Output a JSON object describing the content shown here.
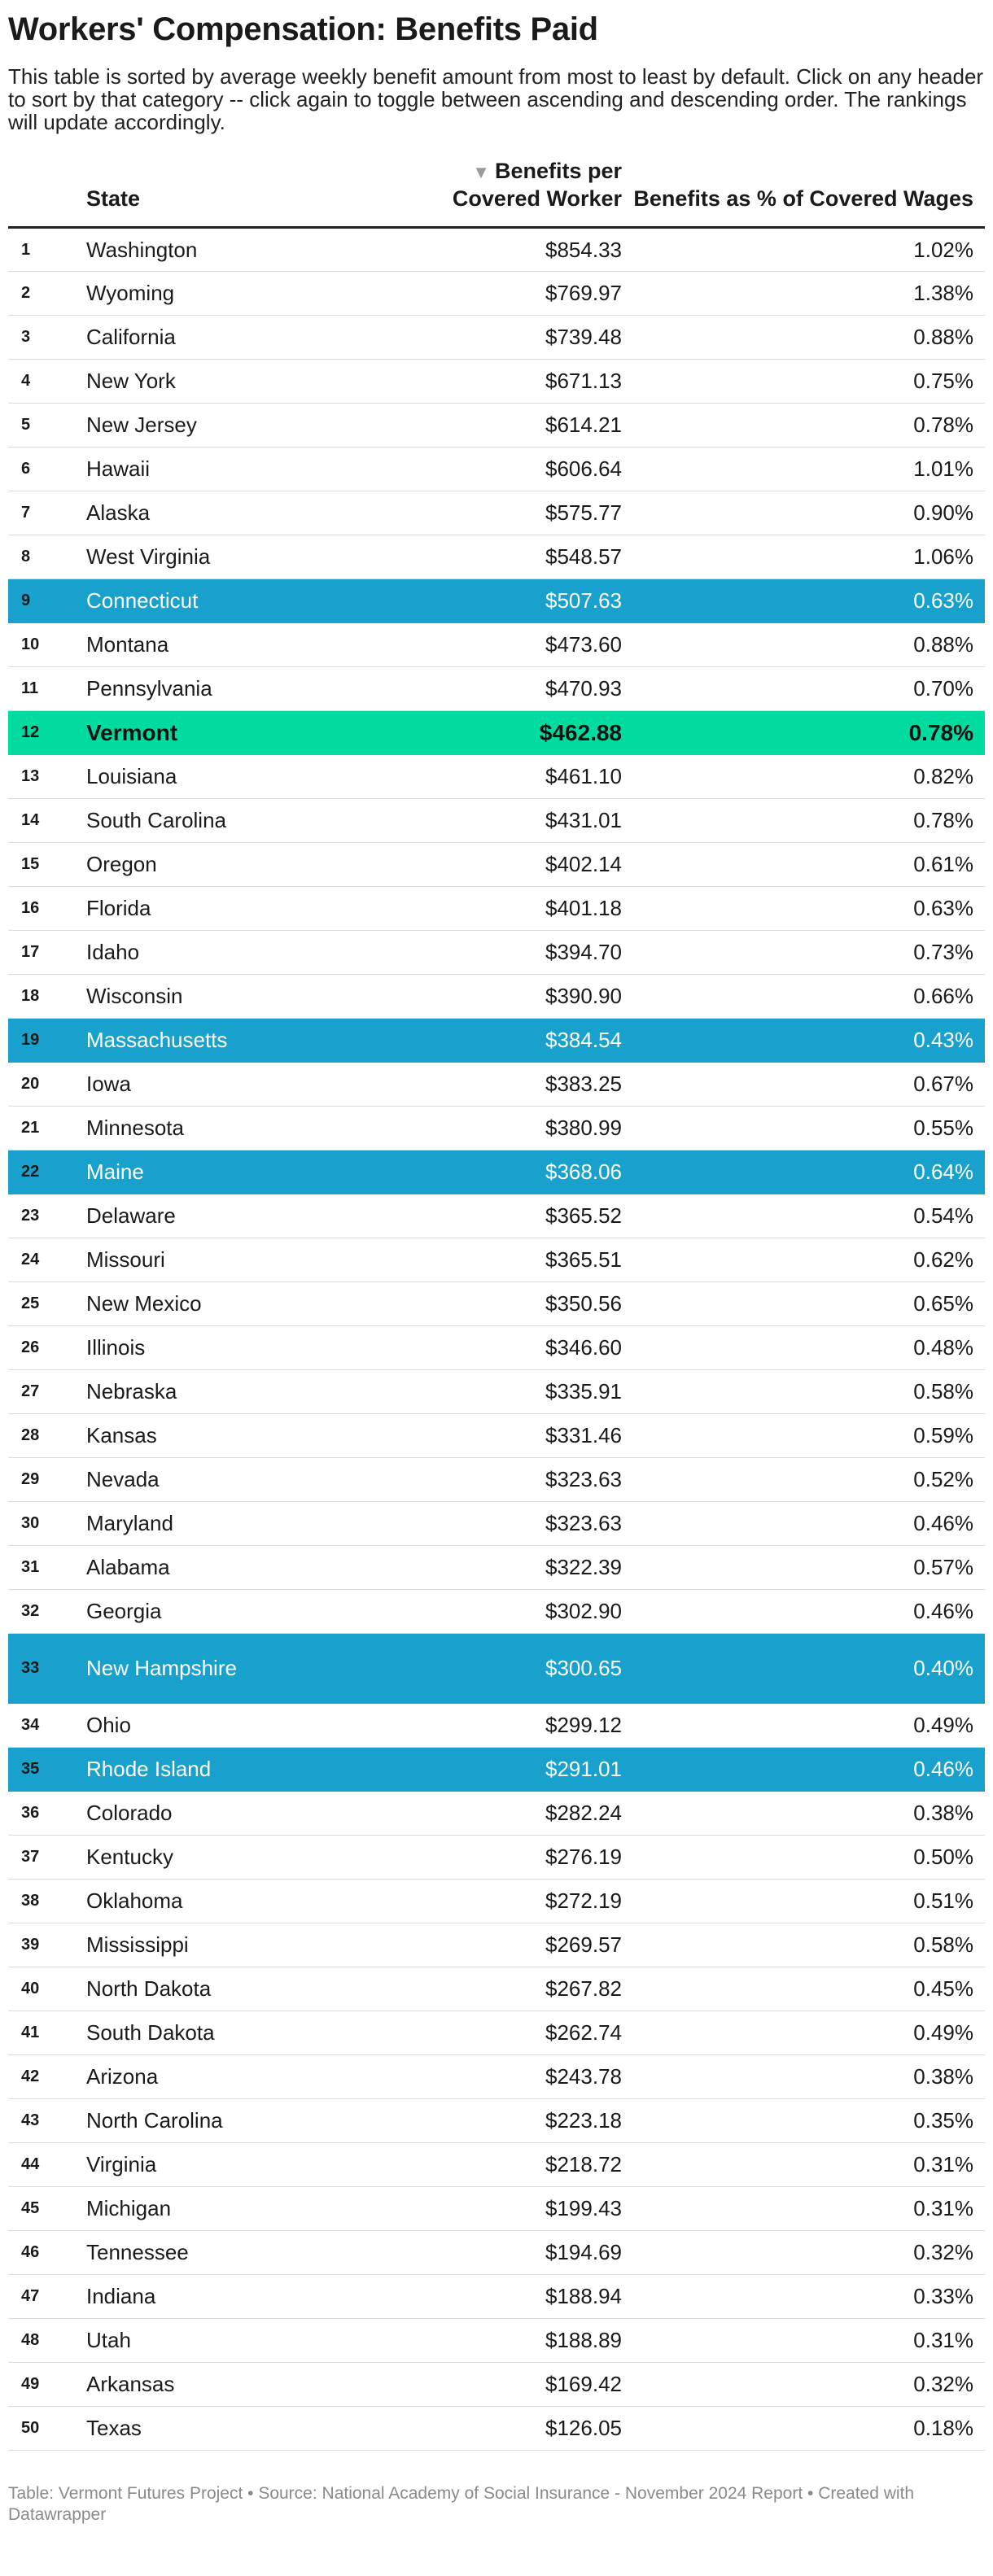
{
  "page": {
    "title": "Workers' Compensation: Benefits Paid",
    "description": "This table is sorted by average weekly benefit amount from most to least by default. Click on any header to sort by that category -- click again to toggle between ascending and descending order. The rankings will update accordingly.",
    "footer": "Table: Vermont Futures Project • Source: National Academy of Social Insurance - November 2024 Report • Created with Datawrapper"
  },
  "colors": {
    "highlight_new_england": "#18a1cd",
    "highlight_vermont": "#00dca0"
  },
  "chart_data": {
    "type": "table",
    "sort": {
      "column": "Benefits per Covered Worker",
      "direction": "descending",
      "indicator": "sort-down-icon"
    },
    "columns": [
      "",
      "State",
      "Benefits per Covered Worker",
      "Benefits as % of Covered Wages"
    ],
    "rows": [
      {
        "rank": "1",
        "state": "Washington",
        "benefits": "$854.33",
        "pct": "1.02%",
        "hl": ""
      },
      {
        "rank": "2",
        "state": "Wyoming",
        "benefits": "$769.97",
        "pct": "1.38%",
        "hl": ""
      },
      {
        "rank": "3",
        "state": "California",
        "benefits": "$739.48",
        "pct": "0.88%",
        "hl": ""
      },
      {
        "rank": "4",
        "state": "New York",
        "benefits": "$671.13",
        "pct": "0.75%",
        "hl": ""
      },
      {
        "rank": "5",
        "state": "New Jersey",
        "benefits": "$614.21",
        "pct": "0.78%",
        "hl": ""
      },
      {
        "rank": "6",
        "state": "Hawaii",
        "benefits": "$606.64",
        "pct": "1.01%",
        "hl": ""
      },
      {
        "rank": "7",
        "state": "Alaska",
        "benefits": "$575.77",
        "pct": "0.90%",
        "hl": ""
      },
      {
        "rank": "8",
        "state": "West Virginia",
        "benefits": "$548.57",
        "pct": "1.06%",
        "hl": ""
      },
      {
        "rank": "9",
        "state": "Connecticut",
        "benefits": "$507.63",
        "pct": "0.63%",
        "hl": "blue"
      },
      {
        "rank": "10",
        "state": "Montana",
        "benefits": "$473.60",
        "pct": "0.88%",
        "hl": ""
      },
      {
        "rank": "11",
        "state": "Pennsylvania",
        "benefits": "$470.93",
        "pct": "0.70%",
        "hl": ""
      },
      {
        "rank": "12",
        "state": "Vermont",
        "benefits": "$462.88",
        "pct": "0.78%",
        "hl": "green"
      },
      {
        "rank": "13",
        "state": "Louisiana",
        "benefits": "$461.10",
        "pct": "0.82%",
        "hl": ""
      },
      {
        "rank": "14",
        "state": "South Carolina",
        "benefits": "$431.01",
        "pct": "0.78%",
        "hl": ""
      },
      {
        "rank": "15",
        "state": "Oregon",
        "benefits": "$402.14",
        "pct": "0.61%",
        "hl": ""
      },
      {
        "rank": "16",
        "state": "Florida",
        "benefits": "$401.18",
        "pct": "0.63%",
        "hl": ""
      },
      {
        "rank": "17",
        "state": "Idaho",
        "benefits": "$394.70",
        "pct": "0.73%",
        "hl": ""
      },
      {
        "rank": "18",
        "state": "Wisconsin",
        "benefits": "$390.90",
        "pct": "0.66%",
        "hl": ""
      },
      {
        "rank": "19",
        "state": "Massachusetts",
        "benefits": "$384.54",
        "pct": "0.43%",
        "hl": "blue"
      },
      {
        "rank": "20",
        "state": "Iowa",
        "benefits": "$383.25",
        "pct": "0.67%",
        "hl": ""
      },
      {
        "rank": "21",
        "state": "Minnesota",
        "benefits": "$380.99",
        "pct": "0.55%",
        "hl": ""
      },
      {
        "rank": "22",
        "state": "Maine",
        "benefits": "$368.06",
        "pct": "0.64%",
        "hl": "blue"
      },
      {
        "rank": "23",
        "state": "Delaware",
        "benefits": "$365.52",
        "pct": "0.54%",
        "hl": ""
      },
      {
        "rank": "24",
        "state": "Missouri",
        "benefits": "$365.51",
        "pct": "0.62%",
        "hl": ""
      },
      {
        "rank": "25",
        "state": "New Mexico",
        "benefits": "$350.56",
        "pct": "0.65%",
        "hl": ""
      },
      {
        "rank": "26",
        "state": "Illinois",
        "benefits": "$346.60",
        "pct": "0.48%",
        "hl": ""
      },
      {
        "rank": "27",
        "state": "Nebraska",
        "benefits": "$335.91",
        "pct": "0.58%",
        "hl": ""
      },
      {
        "rank": "28",
        "state": "Kansas",
        "benefits": "$331.46",
        "pct": "0.59%",
        "hl": ""
      },
      {
        "rank": "29",
        "state": "Nevada",
        "benefits": "$323.63",
        "pct": "0.52%",
        "hl": ""
      },
      {
        "rank": "30",
        "state": "Maryland",
        "benefits": "$323.63",
        "pct": "0.46%",
        "hl": ""
      },
      {
        "rank": "31",
        "state": "Alabama",
        "benefits": "$322.39",
        "pct": "0.57%",
        "hl": ""
      },
      {
        "rank": "32",
        "state": "Georgia",
        "benefits": "$302.90",
        "pct": "0.46%",
        "hl": ""
      },
      {
        "rank": "33",
        "state": "New Hampshire",
        "benefits": "$300.65",
        "pct": "0.40%",
        "hl": "blue"
      },
      {
        "rank": "34",
        "state": "Ohio",
        "benefits": "$299.12",
        "pct": "0.49%",
        "hl": ""
      },
      {
        "rank": "35",
        "state": "Rhode Island",
        "benefits": "$291.01",
        "pct": "0.46%",
        "hl": "blue"
      },
      {
        "rank": "36",
        "state": "Colorado",
        "benefits": "$282.24",
        "pct": "0.38%",
        "hl": ""
      },
      {
        "rank": "37",
        "state": "Kentucky",
        "benefits": "$276.19",
        "pct": "0.50%",
        "hl": ""
      },
      {
        "rank": "38",
        "state": "Oklahoma",
        "benefits": "$272.19",
        "pct": "0.51%",
        "hl": ""
      },
      {
        "rank": "39",
        "state": "Mississippi",
        "benefits": "$269.57",
        "pct": "0.58%",
        "hl": ""
      },
      {
        "rank": "40",
        "state": "North Dakota",
        "benefits": "$267.82",
        "pct": "0.45%",
        "hl": ""
      },
      {
        "rank": "41",
        "state": "South Dakota",
        "benefits": "$262.74",
        "pct": "0.49%",
        "hl": ""
      },
      {
        "rank": "42",
        "state": "Arizona",
        "benefits": "$243.78",
        "pct": "0.38%",
        "hl": ""
      },
      {
        "rank": "43",
        "state": "North Carolina",
        "benefits": "$223.18",
        "pct": "0.35%",
        "hl": ""
      },
      {
        "rank": "44",
        "state": "Virginia",
        "benefits": "$218.72",
        "pct": "0.31%",
        "hl": ""
      },
      {
        "rank": "45",
        "state": "Michigan",
        "benefits": "$199.43",
        "pct": "0.31%",
        "hl": ""
      },
      {
        "rank": "46",
        "state": "Tennessee",
        "benefits": "$194.69",
        "pct": "0.32%",
        "hl": ""
      },
      {
        "rank": "47",
        "state": "Indiana",
        "benefits": "$188.94",
        "pct": "0.33%",
        "hl": ""
      },
      {
        "rank": "48",
        "state": "Utah",
        "benefits": "$188.89",
        "pct": "0.31%",
        "hl": ""
      },
      {
        "rank": "49",
        "state": "Arkansas",
        "benefits": "$169.42",
        "pct": "0.32%",
        "hl": ""
      },
      {
        "rank": "50",
        "state": "Texas",
        "benefits": "$126.05",
        "pct": "0.18%",
        "hl": ""
      }
    ]
  }
}
